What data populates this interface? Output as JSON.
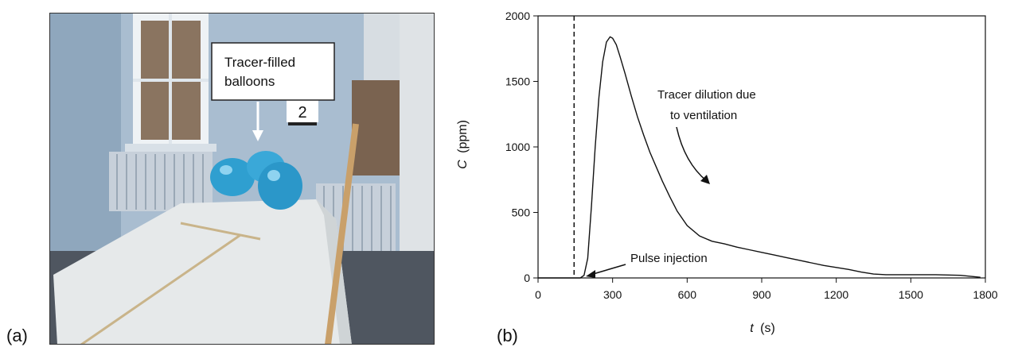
{
  "panels": {
    "a_label": "(a)",
    "b_label": "(b)"
  },
  "photo": {
    "callout_line1": "Tracer-filled",
    "callout_line2": "balloons",
    "sign_number": "2",
    "colors": {
      "wall": "#a9bdd0",
      "window_light": "#eef2f5",
      "brick": "#8a7460",
      "balloon": "#2f9fd0",
      "table_cloth": "#e6e9ea",
      "floor": "#4f5660",
      "radiator": "#c7d0da",
      "pole": "#c9a06a"
    }
  },
  "chart_data": {
    "type": "line",
    "x_unit_symbol": "t",
    "x_unit": "(s)",
    "y_unit_symbol": "C",
    "y_unit": "(ppm)",
    "xlim": [
      0,
      1800
    ],
    "ylim": [
      0,
      2000
    ],
    "x_ticks": [
      0,
      300,
      600,
      900,
      1200,
      1500,
      1800
    ],
    "y_ticks": [
      0,
      500,
      1000,
      1500,
      2000
    ],
    "injection_time": 145,
    "series": [
      {
        "x": [
          0,
          60,
          120,
          150,
          170,
          185,
          200,
          215,
          230,
          245,
          260,
          275,
          290,
          300,
          315,
          330,
          350,
          375,
          400,
          425,
          450,
          475,
          500,
          530,
          560,
          600,
          650,
          700,
          750,
          800,
          850,
          900,
          950,
          1000,
          1050,
          1100,
          1150,
          1200,
          1250,
          1300,
          1350,
          1400,
          1500,
          1600,
          1700,
          1780
        ],
        "y": [
          0,
          0,
          0,
          0,
          0,
          20,
          150,
          550,
          1000,
          1380,
          1650,
          1800,
          1840,
          1830,
          1780,
          1690,
          1560,
          1390,
          1230,
          1090,
          960,
          850,
          740,
          620,
          510,
          400,
          320,
          280,
          260,
          235,
          215,
          195,
          175,
          155,
          135,
          115,
          95,
          80,
          65,
          45,
          30,
          25,
          25,
          25,
          20,
          5
        ]
      }
    ],
    "annotations": [
      {
        "line1": "Tracer dilution due",
        "line2": "to ventilation"
      },
      {
        "line1": "Pulse injection",
        "line2": ""
      }
    ],
    "grid": false
  }
}
